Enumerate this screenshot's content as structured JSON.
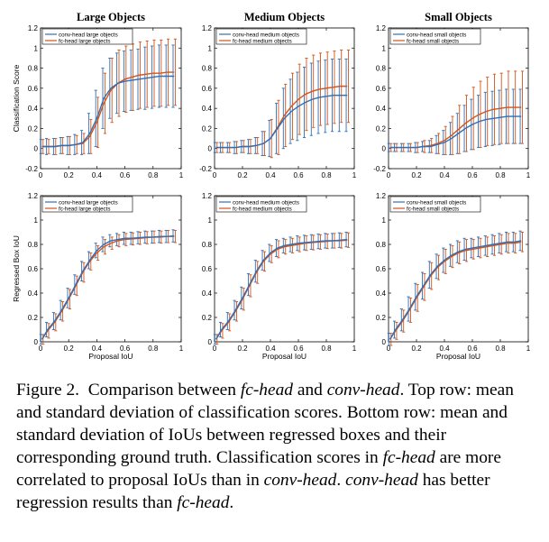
{
  "colors": {
    "conv": "#2f6fb6",
    "fc": "#d3541b"
  },
  "shared": {
    "x": [
      0.01,
      0.05,
      0.1,
      0.15,
      0.2,
      0.25,
      0.3,
      0.35,
      0.4,
      0.45,
      0.5,
      0.55,
      0.6,
      0.65,
      0.7,
      0.75,
      0.8,
      0.85,
      0.9,
      0.95
    ],
    "xticks": [
      "0",
      "0.2",
      "0.4",
      "0.6",
      "0.8",
      "1"
    ]
  },
  "xlabel": "Proposal IoU",
  "caption": {
    "fig_label": "Figure 2.",
    "segments": [
      {
        "t": "Comparison between ",
        "i": false
      },
      {
        "t": "fc-head",
        "i": true
      },
      {
        "t": " and ",
        "i": false
      },
      {
        "t": "conv-head",
        "i": true
      },
      {
        "t": ". Top row: mean and standard deviation of classification scores. Bottom row: mean and standard deviation of IoUs between regressed boxes and their corresponding ground truth. Classification scores in ",
        "i": false
      },
      {
        "t": "fc-head",
        "i": true
      },
      {
        "t": " are more correlated to proposal IoUs than in ",
        "i": false
      },
      {
        "t": "conv-head",
        "i": true
      },
      {
        "t": ". ",
        "i": false
      },
      {
        "t": "conv-head",
        "i": true
      },
      {
        "t": " has better regression results than ",
        "i": false
      },
      {
        "t": "fc-head",
        "i": true
      },
      {
        "t": ".",
        "i": false
      }
    ]
  },
  "chart_data": [
    {
      "type": "line",
      "title": "Large Objects",
      "ylabel": "Classification Score",
      "ylim": [
        -0.2,
        1.2
      ],
      "yticks": [
        "-0.2",
        "0",
        "0.2",
        "0.4",
        "0.6",
        "0.8",
        "1",
        "1.2"
      ],
      "xlim": [
        0,
        1
      ],
      "legend": "top-left",
      "series": [
        {
          "name": "conv-head large objects",
          "key": "conv",
          "values": [
            0.02,
            0.02,
            0.02,
            0.03,
            0.03,
            0.04,
            0.06,
            0.15,
            0.3,
            0.5,
            0.6,
            0.65,
            0.67,
            0.68,
            0.69,
            0.7,
            0.71,
            0.72,
            0.72,
            0.72
          ],
          "std": [
            0.07,
            0.08,
            0.08,
            0.08,
            0.09,
            0.1,
            0.12,
            0.2,
            0.28,
            0.3,
            0.3,
            0.3,
            0.3,
            0.3,
            0.3,
            0.31,
            0.31,
            0.31,
            0.31,
            0.31
          ]
        },
        {
          "name": "fc-head large objects",
          "key": "fc",
          "values": [
            0.02,
            0.02,
            0.02,
            0.03,
            0.03,
            0.04,
            0.05,
            0.12,
            0.26,
            0.45,
            0.58,
            0.65,
            0.69,
            0.71,
            0.73,
            0.74,
            0.75,
            0.75,
            0.76,
            0.76
          ],
          "std": [
            0.07,
            0.07,
            0.08,
            0.08,
            0.09,
            0.09,
            0.1,
            0.17,
            0.25,
            0.3,
            0.32,
            0.33,
            0.33,
            0.33,
            0.33,
            0.33,
            0.33,
            0.33,
            0.33,
            0.33
          ]
        }
      ]
    },
    {
      "type": "line",
      "title": "Medium Objects",
      "ylim": [
        -0.2,
        1.2
      ],
      "yticks": [
        "-0.2",
        "0",
        "0.2",
        "0.4",
        "0.6",
        "0.8",
        "1",
        "1.2"
      ],
      "xlim": [
        0,
        1
      ],
      "legend": "top-left",
      "series": [
        {
          "name": "conv-head medium objects",
          "key": "conv",
          "values": [
            0.01,
            0.01,
            0.01,
            0.01,
            0.02,
            0.02,
            0.03,
            0.05,
            0.1,
            0.2,
            0.3,
            0.37,
            0.42,
            0.46,
            0.49,
            0.51,
            0.52,
            0.53,
            0.53,
            0.53
          ],
          "std": [
            0.05,
            0.05,
            0.05,
            0.06,
            0.06,
            0.07,
            0.08,
            0.12,
            0.18,
            0.25,
            0.3,
            0.32,
            0.34,
            0.35,
            0.36,
            0.36,
            0.36,
            0.36,
            0.36,
            0.36
          ]
        },
        {
          "name": "fc-head medium objects",
          "key": "fc",
          "values": [
            0.01,
            0.01,
            0.01,
            0.01,
            0.02,
            0.02,
            0.03,
            0.05,
            0.1,
            0.21,
            0.33,
            0.42,
            0.49,
            0.54,
            0.57,
            0.59,
            0.6,
            0.61,
            0.62,
            0.62
          ],
          "std": [
            0.05,
            0.05,
            0.05,
            0.06,
            0.06,
            0.07,
            0.08,
            0.12,
            0.19,
            0.27,
            0.31,
            0.33,
            0.35,
            0.36,
            0.36,
            0.36,
            0.36,
            0.36,
            0.36,
            0.36
          ]
        }
      ]
    },
    {
      "type": "line",
      "title": "Small Objects",
      "ylim": [
        -0.2,
        1.2
      ],
      "yticks": [
        "-0.2",
        "0",
        "0.2",
        "0.4",
        "0.6",
        "0.8",
        "1",
        "1.2"
      ],
      "xlim": [
        0,
        1
      ],
      "legend": "top-left",
      "series": [
        {
          "name": "conv-head small objects",
          "key": "conv",
          "values": [
            0.01,
            0.01,
            0.01,
            0.01,
            0.01,
            0.02,
            0.02,
            0.04,
            0.06,
            0.1,
            0.15,
            0.2,
            0.24,
            0.27,
            0.29,
            0.3,
            0.31,
            0.32,
            0.32,
            0.32
          ],
          "std": [
            0.04,
            0.04,
            0.04,
            0.04,
            0.05,
            0.05,
            0.06,
            0.09,
            0.12,
            0.16,
            0.2,
            0.23,
            0.25,
            0.26,
            0.27,
            0.27,
            0.27,
            0.27,
            0.27,
            0.27
          ]
        },
        {
          "name": "fc-head small objects",
          "key": "fc",
          "values": [
            0.01,
            0.01,
            0.01,
            0.01,
            0.01,
            0.02,
            0.03,
            0.05,
            0.08,
            0.13,
            0.19,
            0.25,
            0.3,
            0.34,
            0.37,
            0.39,
            0.4,
            0.41,
            0.41,
            0.41
          ],
          "std": [
            0.04,
            0.04,
            0.04,
            0.04,
            0.05,
            0.06,
            0.07,
            0.1,
            0.14,
            0.19,
            0.24,
            0.28,
            0.31,
            0.33,
            0.34,
            0.35,
            0.35,
            0.36,
            0.36,
            0.36
          ]
        }
      ]
    },
    {
      "type": "line",
      "ylabel": "Regressed Box IoU",
      "ylim": [
        0,
        1.2
      ],
      "yticks": [
        "0",
        "0.2",
        "0.4",
        "0.6",
        "0.8",
        "1",
        "1.2"
      ],
      "xlim": [
        0,
        1
      ],
      "legend": "top-left",
      "series": [
        {
          "name": "conv-head large objects",
          "key": "conv",
          "values": [
            0.02,
            0.1,
            0.17,
            0.26,
            0.36,
            0.47,
            0.58,
            0.67,
            0.75,
            0.8,
            0.83,
            0.84,
            0.85,
            0.85,
            0.855,
            0.86,
            0.86,
            0.865,
            0.865,
            0.87
          ],
          "std": [
            0.04,
            0.06,
            0.07,
            0.08,
            0.08,
            0.08,
            0.08,
            0.07,
            0.06,
            0.06,
            0.05,
            0.05,
            0.05,
            0.05,
            0.05,
            0.05,
            0.05,
            0.05,
            0.05,
            0.05
          ]
        },
        {
          "name": "fc-head large objects",
          "key": "fc",
          "values": [
            0.02,
            0.09,
            0.16,
            0.25,
            0.35,
            0.46,
            0.57,
            0.66,
            0.73,
            0.78,
            0.81,
            0.83,
            0.84,
            0.845,
            0.85,
            0.855,
            0.86,
            0.86,
            0.865,
            0.865
          ],
          "std": [
            0.04,
            0.06,
            0.07,
            0.08,
            0.08,
            0.08,
            0.08,
            0.07,
            0.06,
            0.06,
            0.05,
            0.05,
            0.05,
            0.05,
            0.05,
            0.05,
            0.05,
            0.05,
            0.05,
            0.05
          ]
        }
      ]
    },
    {
      "type": "line",
      "ylim": [
        0,
        1.2
      ],
      "yticks": [
        "0",
        "0.2",
        "0.4",
        "0.6",
        "0.8",
        "1",
        "1.2"
      ],
      "xlim": [
        0,
        1
      ],
      "legend": "top-left",
      "series": [
        {
          "name": "conv-head medium objects",
          "key": "conv",
          "values": [
            0.02,
            0.1,
            0.17,
            0.26,
            0.36,
            0.47,
            0.58,
            0.67,
            0.73,
            0.77,
            0.79,
            0.8,
            0.81,
            0.815,
            0.82,
            0.825,
            0.83,
            0.83,
            0.835,
            0.84
          ],
          "std": [
            0.04,
            0.06,
            0.07,
            0.08,
            0.09,
            0.09,
            0.09,
            0.08,
            0.07,
            0.07,
            0.06,
            0.06,
            0.06,
            0.06,
            0.06,
            0.06,
            0.06,
            0.06,
            0.06,
            0.06
          ]
        },
        {
          "name": "fc-head medium objects",
          "key": "fc",
          "values": [
            0.02,
            0.09,
            0.16,
            0.25,
            0.35,
            0.46,
            0.57,
            0.66,
            0.72,
            0.76,
            0.78,
            0.79,
            0.8,
            0.81,
            0.815,
            0.82,
            0.825,
            0.83,
            0.83,
            0.835
          ],
          "std": [
            0.04,
            0.06,
            0.07,
            0.08,
            0.09,
            0.09,
            0.09,
            0.08,
            0.07,
            0.07,
            0.06,
            0.06,
            0.06,
            0.06,
            0.06,
            0.06,
            0.06,
            0.06,
            0.06,
            0.06
          ]
        }
      ]
    },
    {
      "type": "line",
      "ylim": [
        0,
        1.2
      ],
      "yticks": [
        "0",
        "0.2",
        "0.4",
        "0.6",
        "0.8",
        "1",
        "1.2"
      ],
      "xlim": [
        0,
        1
      ],
      "legend": "top-left",
      "series": [
        {
          "name": "conv-head small objects",
          "key": "conv",
          "values": [
            0.02,
            0.1,
            0.18,
            0.27,
            0.37,
            0.46,
            0.55,
            0.62,
            0.67,
            0.71,
            0.74,
            0.76,
            0.77,
            0.78,
            0.79,
            0.8,
            0.81,
            0.82,
            0.82,
            0.83
          ],
          "std": [
            0.05,
            0.07,
            0.09,
            0.1,
            0.11,
            0.11,
            0.11,
            0.1,
            0.1,
            0.09,
            0.09,
            0.09,
            0.08,
            0.08,
            0.08,
            0.08,
            0.08,
            0.08,
            0.08,
            0.08
          ]
        },
        {
          "name": "fc-head small objects",
          "key": "fc",
          "values": [
            0.02,
            0.09,
            0.17,
            0.26,
            0.36,
            0.45,
            0.54,
            0.61,
            0.66,
            0.7,
            0.73,
            0.75,
            0.76,
            0.77,
            0.78,
            0.79,
            0.8,
            0.81,
            0.81,
            0.82
          ],
          "std": [
            0.05,
            0.07,
            0.09,
            0.1,
            0.11,
            0.11,
            0.11,
            0.1,
            0.1,
            0.09,
            0.09,
            0.09,
            0.08,
            0.08,
            0.08,
            0.08,
            0.08,
            0.08,
            0.08,
            0.08
          ]
        }
      ]
    }
  ]
}
